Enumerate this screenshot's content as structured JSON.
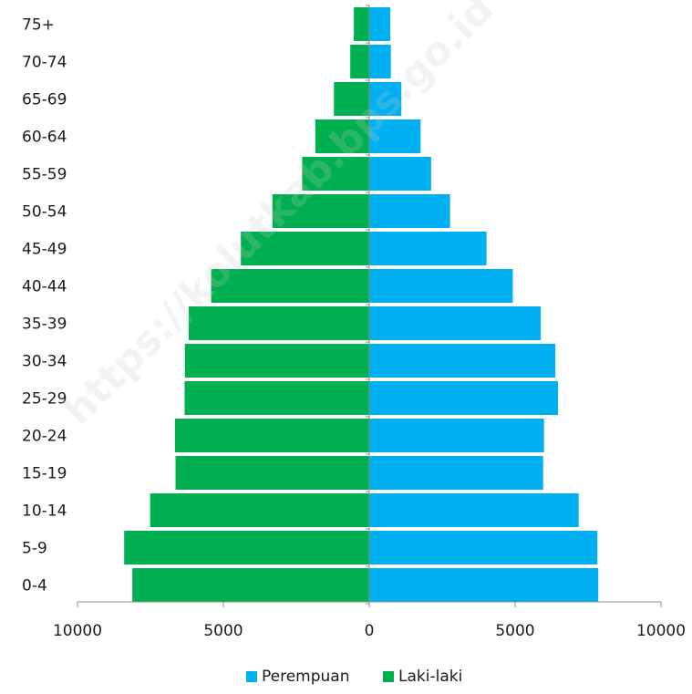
{
  "chart_data": {
    "type": "bar",
    "orientation": "horizontal",
    "layout": "population-pyramid",
    "categories": [
      "0-4",
      "5-9",
      "10-14",
      "15-19",
      "20-24",
      "25-29",
      "30-34",
      "35-39",
      "40-44",
      "45-49",
      "50-54",
      "55-59",
      "60-64",
      "65-69",
      "70-74",
      "75+"
    ],
    "series": [
      {
        "name": "Perempuan",
        "side": "right",
        "color": "#00b0f0",
        "values": [
          7850,
          7820,
          7180,
          5960,
          5990,
          6470,
          6380,
          5880,
          4920,
          4020,
          2770,
          2120,
          1760,
          1100,
          740,
          720
        ]
      },
      {
        "name": "Laki-laki",
        "side": "left",
        "color": "#00b050",
        "values": [
          8120,
          8400,
          7510,
          6640,
          6660,
          6330,
          6320,
          6190,
          5420,
          4400,
          3320,
          2300,
          1850,
          1210,
          650,
          530
        ]
      }
    ],
    "xticks": [
      "10000",
      "5000",
      "0",
      "5000",
      "10000"
    ],
    "xlim": [
      -10000,
      10000
    ],
    "legend": {
      "position": "bottom",
      "labels": [
        "Perempuan",
        "Laki-laki"
      ]
    },
    "grid": false
  },
  "watermark": "https://kolutkab.bps.go.id"
}
